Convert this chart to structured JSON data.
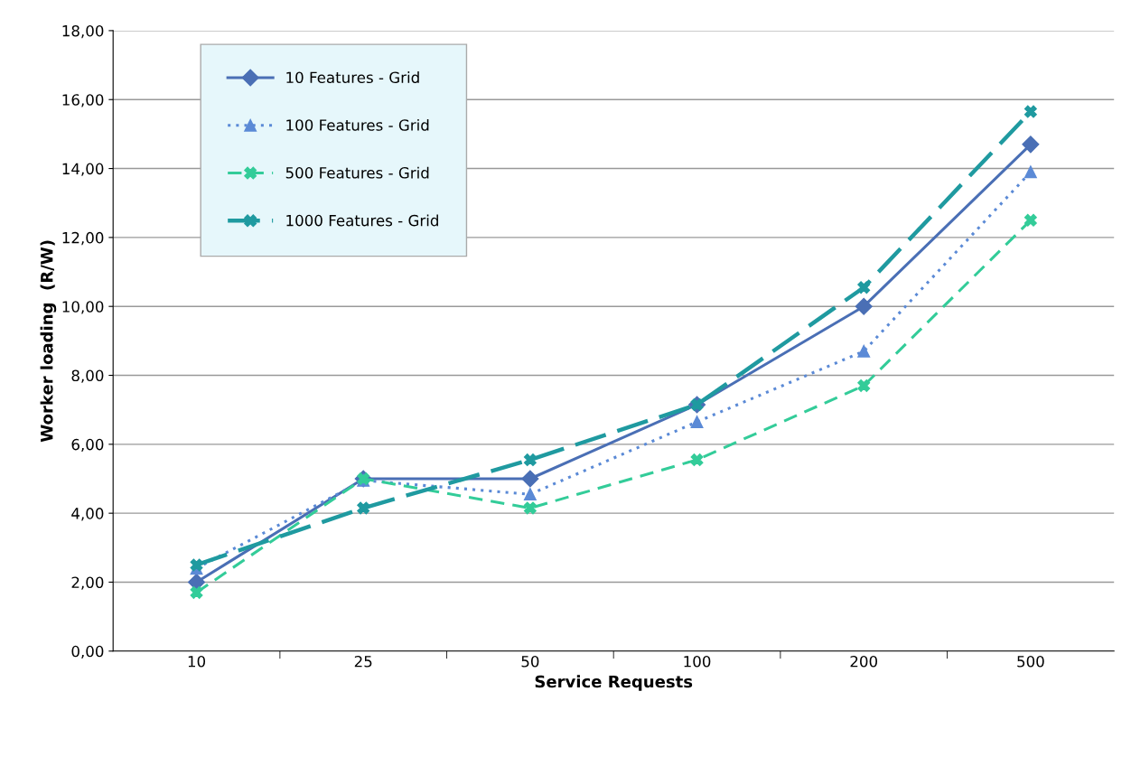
{
  "chart_data": {
    "type": "line",
    "xlabel": "Service Requests",
    "ylabel": "Worker loading  (R/W)",
    "categories": [
      "10",
      "25",
      "50",
      "100",
      "200",
      "500"
    ],
    "series": [
      {
        "name": "10 Features - Grid",
        "color": "#4a6fb5",
        "marker": "diamond",
        "line_style": "solid",
        "values": [
          2.0,
          5.0,
          5.0,
          7.15,
          10.0,
          14.7
        ]
      },
      {
        "name": "100 Features - Grid",
        "color": "#5b8ad6",
        "marker": "triangle",
        "line_style": "dotted",
        "values": [
          2.4,
          4.95,
          4.55,
          6.65,
          8.7,
          13.9
        ]
      },
      {
        "name": "500 Features - Grid",
        "color": "#33cc99",
        "marker": "cross",
        "line_style": "dashed",
        "values": [
          1.7,
          5.0,
          4.15,
          5.55,
          7.7,
          12.5
        ]
      },
      {
        "name": "1000 Features - Grid",
        "color": "#1f9aa0",
        "marker": "cross",
        "line_style": "longdash",
        "values": [
          2.5,
          4.15,
          5.55,
          7.15,
          10.55,
          15.65
        ]
      }
    ],
    "ylim": [
      0,
      18
    ],
    "yticks": [
      {
        "value": 0,
        "label": "0,00"
      },
      {
        "value": 2,
        "label": "2,00"
      },
      {
        "value": 4,
        "label": "4,00"
      },
      {
        "value": 6,
        "label": "6,00"
      },
      {
        "value": 8,
        "label": "8,00"
      },
      {
        "value": 10,
        "label": "10,00"
      },
      {
        "value": 12,
        "label": "12,00"
      },
      {
        "value": 14,
        "label": "14,00"
      },
      {
        "value": 16,
        "label": "16,00"
      },
      {
        "value": 18,
        "label": "18,00"
      }
    ],
    "grid": "y",
    "legend": "top left"
  }
}
